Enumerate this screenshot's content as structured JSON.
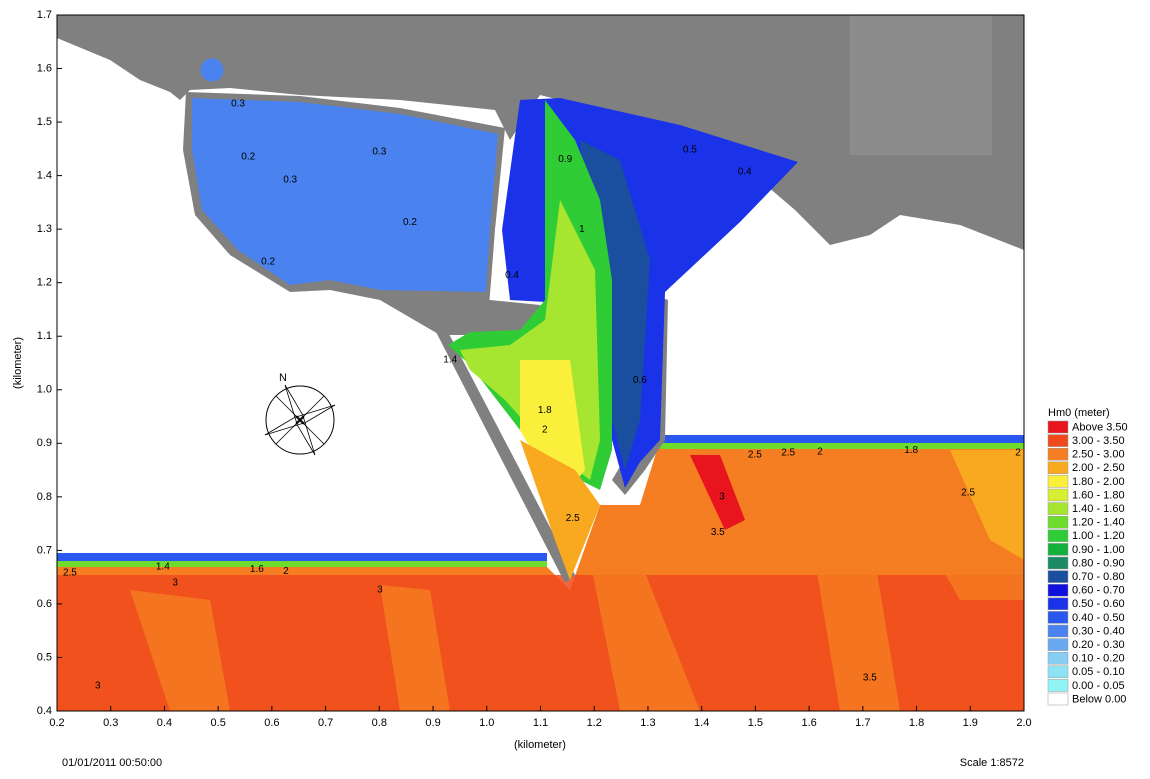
{
  "chart_data": {
    "type": "contour-map",
    "xlabel": "(kilometer)",
    "ylabel": "(kilometer)",
    "xlim": [
      0.2,
      2.0
    ],
    "ylim": [
      0.4,
      1.7
    ],
    "xticks": [
      0.2,
      0.3,
      0.4,
      0.5,
      0.6,
      0.7,
      0.8,
      0.9,
      {
        "value": 1,
        "label": "1.0"
      },
      1.1,
      1.2,
      1.3,
      1.4,
      1.5,
      1.6,
      1.7,
      1.8,
      1.9,
      {
        "value": 2,
        "label": "2.0"
      }
    ],
    "yticks": [
      0.4,
      0.5,
      0.6,
      0.7,
      0.8,
      0.9,
      {
        "value": 1,
        "label": "1.0"
      },
      1.1,
      1.2,
      1.3,
      1.4,
      1.5,
      1.6,
      1.7
    ],
    "legend_title": "Hm0 (meter)",
    "legend": [
      {
        "label": "Above 3.50",
        "color": "#e8141e"
      },
      {
        "label": "3.00 - 3.50",
        "color": "#f04a1c"
      },
      {
        "label": "2.50 - 3.00",
        "color": "#f57d22"
      },
      {
        "label": "2.00 - 2.50",
        "color": "#f9a920"
      },
      {
        "label": "1.80 - 2.00",
        "color": "#faf03c"
      },
      {
        "label": "1.60 - 1.80",
        "color": "#d6ef32"
      },
      {
        "label": "1.40 - 1.60",
        "color": "#a6e630"
      },
      {
        "label": "1.20 - 1.40",
        "color": "#6edc2c"
      },
      {
        "label": "1.00 - 1.20",
        "color": "#2fcc36"
      },
      {
        "label": "0.90 - 1.00",
        "color": "#14b03c"
      },
      {
        "label": "0.80 - 0.90",
        "color": "#1a8a66"
      },
      {
        "label": "0.70 - 0.80",
        "color": "#1a4e9e"
      },
      {
        "label": "0.60 - 0.70",
        "color": "#1010de"
      },
      {
        "label": "0.50 - 0.60",
        "color": "#1a32e8"
      },
      {
        "label": "0.40 - 0.50",
        "color": "#2a58ee"
      },
      {
        "label": "0.30 - 0.40",
        "color": "#4a82f0"
      },
      {
        "label": "0.20 - 0.30",
        "color": "#6aa8f2"
      },
      {
        "label": "0.10 - 0.20",
        "color": "#88cef4"
      },
      {
        "label": "0.05 - 0.10",
        "color": "#8ee2f4"
      },
      {
        "label": "0.00 - 0.05",
        "color": "#8ef4f4"
      },
      {
        "label": "Below 0.00",
        "color": "#ffffff"
      }
    ],
    "contour_labels": [
      {
        "value": 0.3,
        "x": 0.537,
        "y": 1.534
      },
      {
        "value": 0.2,
        "x": 0.556,
        "y": 1.435
      },
      {
        "value": 0.3,
        "x": 0.8,
        "y": 1.444
      },
      {
        "value": 0.3,
        "x": 0.634,
        "y": 1.392
      },
      {
        "value": 0.2,
        "x": 0.857,
        "y": 1.313
      },
      {
        "value": 0.2,
        "x": 0.593,
        "y": 1.239
      },
      {
        "value": 0.4,
        "x": 1.047,
        "y": 1.214
      },
      {
        "value": 0.9,
        "x": 1.146,
        "y": 1.43
      },
      {
        "value": 1,
        "x": 1.177,
        "y": 1.3
      },
      {
        "value": 1.4,
        "x": 0.932,
        "y": 1.056
      },
      {
        "value": 1.8,
        "x": 1.108,
        "y": 0.962
      },
      {
        "value": 2,
        "x": 1.108,
        "y": 0.925
      },
      {
        "value": 0.6,
        "x": 1.285,
        "y": 1.018
      },
      {
        "value": 0.5,
        "x": 1.378,
        "y": 1.448
      },
      {
        "value": 0.4,
        "x": 1.48,
        "y": 1.407
      },
      {
        "value": 2.5,
        "x": 1.499,
        "y": 0.878
      },
      {
        "value": 2.5,
        "x": 1.561,
        "y": 0.882
      },
      {
        "value": 2,
        "x": 1.62,
        "y": 0.884
      },
      {
        "value": 1.8,
        "x": 1.79,
        "y": 0.887
      },
      {
        "value": 2,
        "x": 1.989,
        "y": 0.882
      },
      {
        "value": 2.5,
        "x": 0.224,
        "y": 0.658
      },
      {
        "value": 1.4,
        "x": 0.397,
        "y": 0.669
      },
      {
        "value": 1.6,
        "x": 0.572,
        "y": 0.665
      },
      {
        "value": 2,
        "x": 0.626,
        "y": 0.661
      },
      {
        "value": 3,
        "x": 0.42,
        "y": 0.639
      },
      {
        "value": 3,
        "x": 0.801,
        "y": 0.626
      },
      {
        "value": 2.5,
        "x": 1.16,
        "y": 0.76
      },
      {
        "value": 3,
        "x": 1.438,
        "y": 0.8
      },
      {
        "value": 3.5,
        "x": 1.43,
        "y": 0.734
      },
      {
        "value": 3,
        "x": 0.276,
        "y": 0.447
      },
      {
        "value": 3.5,
        "x": 1.713,
        "y": 0.462
      },
      {
        "value": 2.5,
        "x": 1.896,
        "y": 0.807
      }
    ],
    "compass_label": "N",
    "timestamp": "01/01/2011 00:50:00",
    "scale": "Scale 1:8572"
  }
}
